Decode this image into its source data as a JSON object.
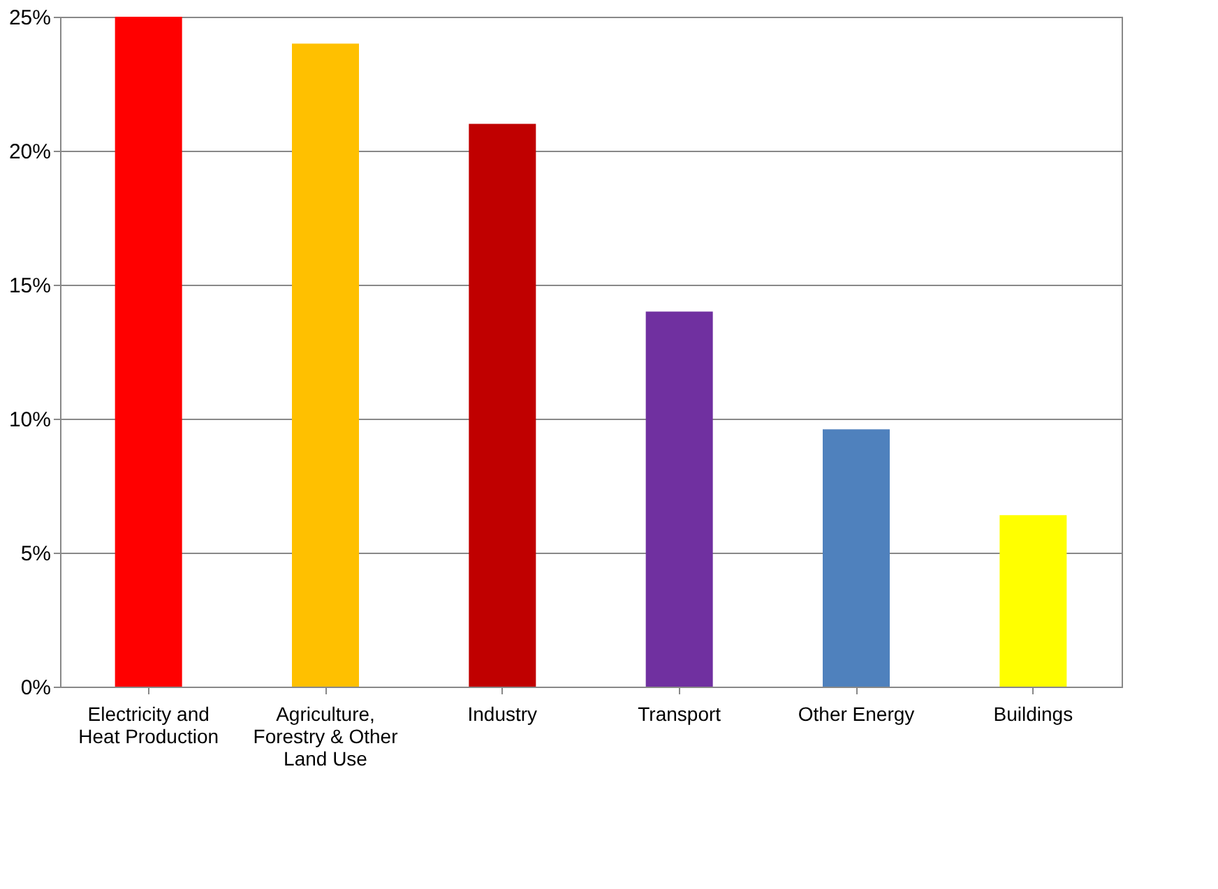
{
  "chart_data": {
    "type": "bar",
    "categories": [
      "Electricity and Heat Production",
      "Agriculture, Forestry & Other Land Use",
      "Industry",
      "Transport",
      "Other Energy",
      "Buildings"
    ],
    "values": [
      25,
      24,
      21,
      14,
      9.6,
      6.4
    ],
    "colors": [
      "#ff0000",
      "#ffc000",
      "#c00000",
      "#7030a0",
      "#4f81bd",
      "#ffff00"
    ],
    "ylim": [
      0,
      25
    ],
    "yticks": [
      {
        "value": 0,
        "label": "0%"
      },
      {
        "value": 5,
        "label": "5%"
      },
      {
        "value": 10,
        "label": "10%"
      },
      {
        "value": 15,
        "label": "15%"
      },
      {
        "value": 20,
        "label": "20%"
      },
      {
        "value": 25,
        "label": "25%"
      }
    ],
    "grid": "y"
  }
}
